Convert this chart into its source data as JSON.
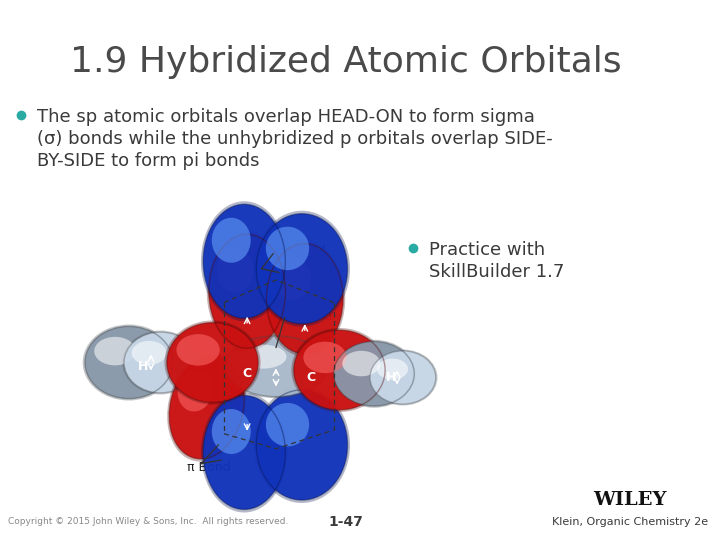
{
  "title": "1.9 Hybridized Atomic Orbitals",
  "title_color": "#4a4a4a",
  "title_fontsize": 26,
  "background_color": "#ffffff",
  "bullet_color": "#29aba4",
  "bullet1_text": "The sp atomic orbitals overlap HEAD-ON to form sigma\n(σ) bonds while the unhybridized p orbitals overlap SIDE-\nBY-SIDE to form pi bonds",
  "bullet2_line1": "Practice with",
  "bullet2_line2": "SkillBuilder 1.7",
  "footer_left": "Copyright © 2015 John Wiley & Sons, Inc.  All rights reserved.",
  "footer_center": "1-47",
  "footer_right": "Klein, Organic Chemistry 2e",
  "footer_brand": "WILEY",
  "text_color": "#3a3a3a",
  "footer_color": "#888888",
  "white": "#ffffff",
  "red_lobe": "#cc1111",
  "blue_lobe": "#1133bb",
  "gray_lobe": "#aabbcc",
  "label_color": "#222222"
}
